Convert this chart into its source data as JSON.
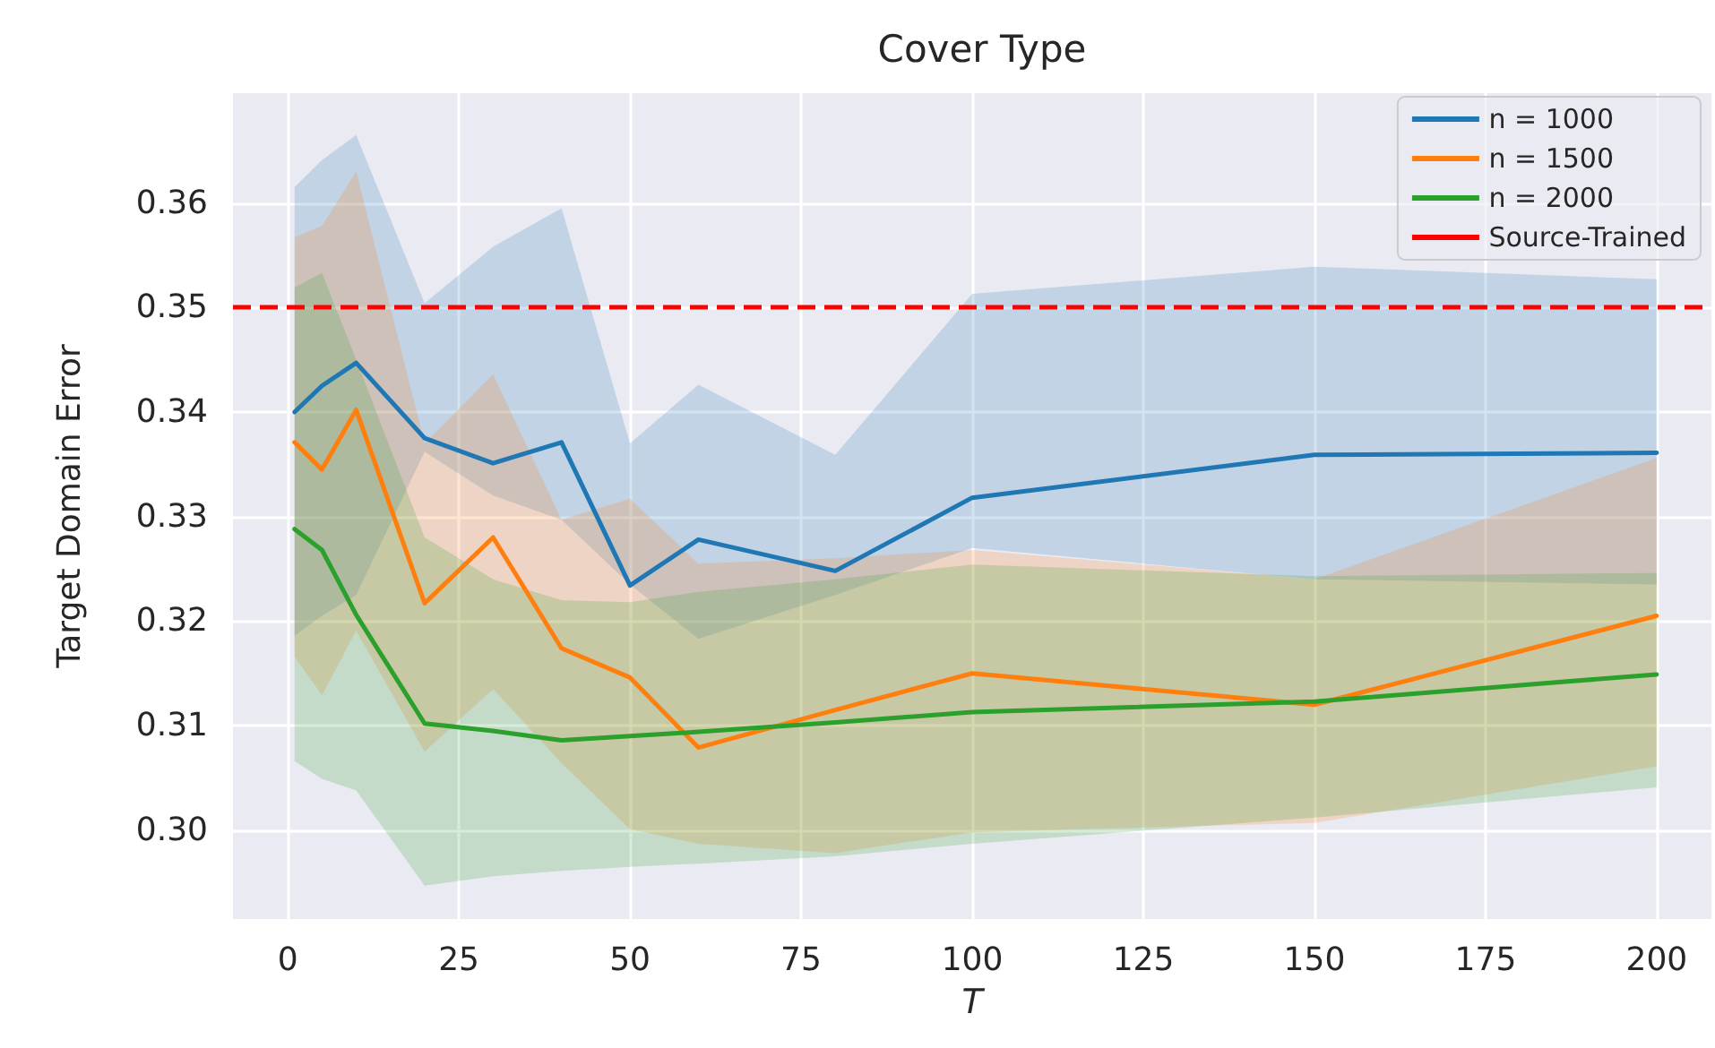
{
  "chart_data": {
    "type": "line",
    "title": "Cover Type",
    "xlabel": "T",
    "ylabel": "Target Domain Error",
    "x": [
      1,
      5,
      10,
      20,
      30,
      40,
      50,
      60,
      80,
      100,
      150,
      200
    ],
    "series": [
      {
        "name": "n = 1000",
        "color": "#1f77b4",
        "values": [
          0.34,
          0.3425,
          0.3447,
          0.3375,
          0.3351,
          0.3371,
          0.3234,
          0.3278,
          0.3248,
          0.3318,
          0.3359,
          0.3361
        ],
        "lower": [
          0.3186,
          0.3205,
          0.3225,
          0.3362,
          0.332,
          0.3297,
          0.3235,
          0.3183,
          0.3225,
          0.327,
          0.324,
          0.3235
        ],
        "upper": [
          0.3615,
          0.3641,
          0.3665,
          0.3504,
          0.3558,
          0.3595,
          0.337,
          0.3426,
          0.3359,
          0.3513,
          0.3539,
          0.3527
        ]
      },
      {
        "name": "n = 1500",
        "color": "#ff7f0e",
        "values": [
          0.3371,
          0.3345,
          0.3402,
          0.3217,
          0.328,
          0.3174,
          0.3146,
          0.3079,
          0.3115,
          0.315,
          0.312,
          0.3205
        ],
        "lower": [
          0.3166,
          0.3129,
          0.3191,
          0.3075,
          0.3135,
          0.3064,
          0.3001,
          0.2987,
          0.2978,
          0.2998,
          0.3007,
          0.3061
        ],
        "upper": [
          0.3567,
          0.3578,
          0.363,
          0.337,
          0.3436,
          0.3297,
          0.3317,
          0.3255,
          0.326,
          0.3268,
          0.324,
          0.3356
        ]
      },
      {
        "name": "n = 2000",
        "color": "#2ca02c",
        "values": [
          0.3288,
          0.3268,
          0.3206,
          0.3102,
          0.3095,
          0.3086,
          0.309,
          0.3094,
          0.3103,
          0.3113,
          0.3123,
          0.3149
        ],
        "lower": [
          0.3066,
          0.3049,
          0.3038,
          0.2947,
          0.2956,
          0.2961,
          0.2965,
          0.2968,
          0.2975,
          0.2987,
          0.3012,
          0.3041
        ],
        "upper": [
          0.3519,
          0.3533,
          0.345,
          0.328,
          0.324,
          0.322,
          0.3218,
          0.3228,
          0.324,
          0.3254,
          0.3243,
          0.3246
        ]
      }
    ],
    "ref_lines": [
      {
        "axis": "y",
        "value": 0.35,
        "label": "Source-Trained",
        "color": "#ff0000",
        "line_style": "dashed"
      }
    ],
    "xlim": [
      -8,
      208
    ],
    "xticks": [
      0,
      25,
      50,
      75,
      100,
      125,
      150,
      175,
      200
    ],
    "ylim": [
      0.2915,
      0.3705
    ],
    "yticks": [
      {
        "value": 0.3,
        "label": "0.30"
      },
      {
        "value": 0.31,
        "label": "0.31"
      },
      {
        "value": 0.32,
        "label": "0.32"
      },
      {
        "value": 0.33,
        "label": "0.33"
      },
      {
        "value": 0.34,
        "label": "0.34"
      },
      {
        "value": 0.35,
        "label": "0.35"
      },
      {
        "value": 0.36,
        "label": "0.36"
      }
    ],
    "grid": true,
    "legend": "top right",
    "marker": "none",
    "line_style": "solid"
  }
}
